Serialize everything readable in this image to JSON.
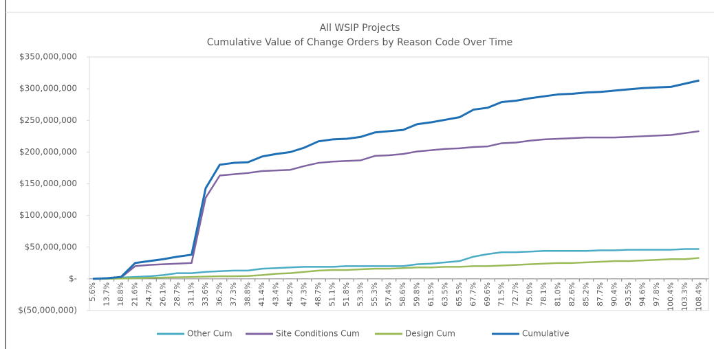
{
  "chart_data": {
    "type": "line",
    "title": "All WSIP Projects",
    "subtitle": "Cumulative Value of Change Orders by Reason Code Over Time",
    "categories": [
      "5.6%",
      "13.7%",
      "18.8%",
      "21.6%",
      "24.7%",
      "26.1%",
      "28.7%",
      "31.1%",
      "33.6%",
      "36.2%",
      "37.3%",
      "38.8%",
      "41.4%",
      "43.4%",
      "45.2%",
      "47.3%",
      "48.7%",
      "51.1%",
      "51.8%",
      "53.3%",
      "55.3%",
      "57.4%",
      "58.6%",
      "59.8%",
      "61.5%",
      "63.5%",
      "65.5%",
      "67.7%",
      "69.6%",
      "71.5%",
      "72.7%",
      "75.0%",
      "78.1%",
      "81.0%",
      "82.6%",
      "85.2%",
      "87.7%",
      "90.4%",
      "93.5%",
      "94.6%",
      "97.8%",
      "100.4%",
      "103.3%",
      "108.4%"
    ],
    "series": [
      {
        "name": "Other Cum",
        "color": "#4bacc6",
        "values": [
          0,
          1000000,
          2000000,
          3000000,
          4000000,
          6000000,
          9000000,
          9000000,
          11000000,
          12000000,
          13000000,
          13000000,
          16000000,
          17000000,
          18000000,
          19000000,
          19000000,
          19000000,
          20000000,
          20000000,
          20000000,
          20000000,
          20000000,
          23000000,
          24000000,
          26000000,
          28000000,
          35000000,
          39000000,
          42000000,
          42000000,
          43000000,
          44000000,
          44000000,
          44000000,
          44000000,
          45000000,
          45000000,
          46000000,
          46000000,
          46000000,
          46000000,
          47000000,
          47000000
        ]
      },
      {
        "name": "Site Conditions Cum",
        "color": "#8064a2",
        "values": [
          0,
          1000000,
          2000000,
          20000000,
          22000000,
          23000000,
          24000000,
          25000000,
          128000000,
          163000000,
          165000000,
          167000000,
          170000000,
          171000000,
          172000000,
          178000000,
          183000000,
          185000000,
          186000000,
          187000000,
          194000000,
          195000000,
          197000000,
          201000000,
          203000000,
          205000000,
          206000000,
          208000000,
          209000000,
          214000000,
          215000000,
          218000000,
          220000000,
          221000000,
          222000000,
          223000000,
          223000000,
          223000000,
          224000000,
          225000000,
          226000000,
          227000000,
          230000000,
          233000000
        ]
      },
      {
        "name": "Design Cum",
        "color": "#9bbb59",
        "values": [
          0,
          0,
          500000,
          1000000,
          1500000,
          2000000,
          2500000,
          3000000,
          3500000,
          4000000,
          4000000,
          4500000,
          6000000,
          8000000,
          9000000,
          11000000,
          13000000,
          14000000,
          14000000,
          15000000,
          16000000,
          16000000,
          17000000,
          18000000,
          18000000,
          19000000,
          19000000,
          20000000,
          20000000,
          21000000,
          22000000,
          23000000,
          24000000,
          25000000,
          25000000,
          26000000,
          27000000,
          28000000,
          28000000,
          29000000,
          30000000,
          31000000,
          31000000,
          33000000
        ]
      },
      {
        "name": "Cumulative",
        "color": "#1f6fb5",
        "values": [
          0,
          1000000,
          3000000,
          25000000,
          28000000,
          31000000,
          35000000,
          38000000,
          143000000,
          180000000,
          183000000,
          184000000,
          193000000,
          197000000,
          200000000,
          207000000,
          217000000,
          220000000,
          221000000,
          224000000,
          231000000,
          233000000,
          235000000,
          244000000,
          247000000,
          251000000,
          255000000,
          267000000,
          270000000,
          279000000,
          281000000,
          285000000,
          288000000,
          291000000,
          292000000,
          294000000,
          295000000,
          297000000,
          299000000,
          301000000,
          302000000,
          303000000,
          308000000,
          313000000
        ]
      }
    ],
    "ylim": [
      -50000000,
      350000000
    ],
    "yticks": [
      {
        "value": -50000000,
        "label": "$(50,000,000)"
      },
      {
        "value": 0,
        "label": "$-"
      },
      {
        "value": 50000000,
        "label": "$50,000,000"
      },
      {
        "value": 100000000,
        "label": "$100,000,000"
      },
      {
        "value": 150000000,
        "label": "$150,000,000"
      },
      {
        "value": 200000000,
        "label": "$200,000,000"
      },
      {
        "value": 250000000,
        "label": "$250,000,000"
      },
      {
        "value": 300000000,
        "label": "$300,000,000"
      },
      {
        "value": 350000000,
        "label": "$350,000,000"
      }
    ],
    "legend": "bottom"
  }
}
